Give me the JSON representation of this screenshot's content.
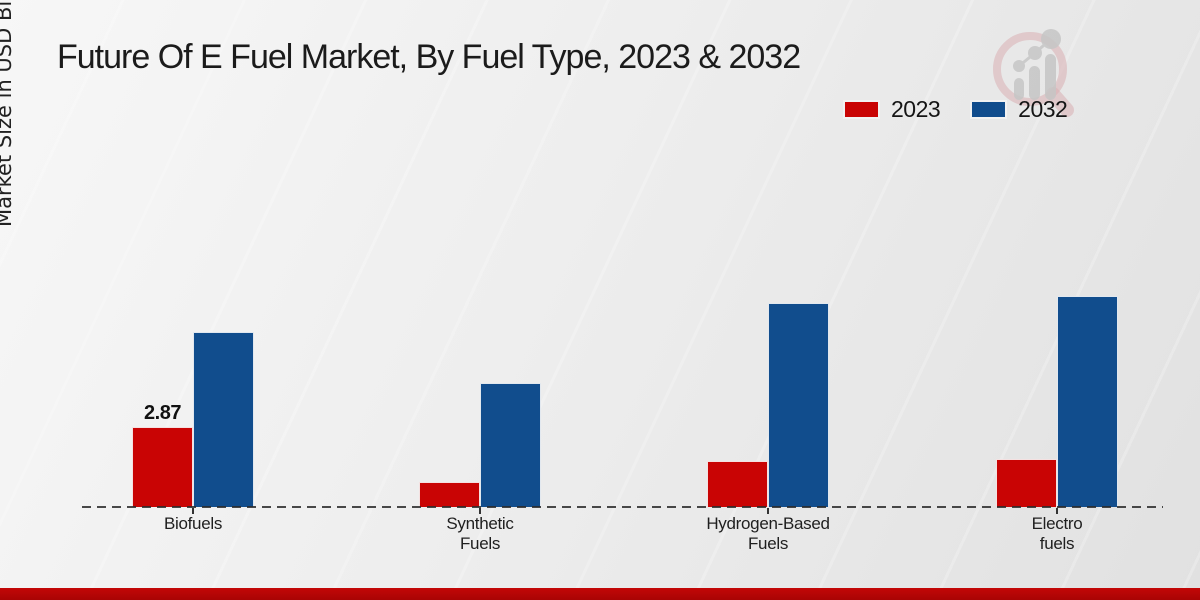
{
  "title": "Future Of E Fuel Market, By Fuel Type, 2023 & 2032",
  "ylabel": "Market Size in USD Billion",
  "legend": [
    {
      "label": "2023",
      "color": "#c90404"
    },
    {
      "label": "2032",
      "color": "#114d8d"
    }
  ],
  "colors": {
    "bar_2023": "#c90404",
    "bar_2032": "#114d8d",
    "axis_dash": "#2a2a2a",
    "bottom_band": "#b90606",
    "background": "#ececec"
  },
  "chart_data": {
    "type": "bar",
    "title": "Future Of E Fuel Market, By Fuel Type, 2023 & 2032",
    "ylabel": "Market Size in USD Billion",
    "xlabel": "",
    "categories": [
      "Biofuels",
      "Synthetic Fuels",
      "Hydrogen-Based Fuels",
      "Electro fuels"
    ],
    "category_lines": [
      [
        "Biofuels"
      ],
      [
        "Synthetic",
        "Fuels"
      ],
      [
        "Hydrogen-Based",
        "Fuels"
      ],
      [
        "Electro",
        "fuels"
      ]
    ],
    "series": [
      {
        "name": "2023",
        "color": "#c90404",
        "values": [
          2.87,
          0.9,
          1.65,
          1.72
        ],
        "point_labels": [
          "2.87",
          "",
          "",
          ""
        ]
      },
      {
        "name": "2032",
        "color": "#114d8d",
        "values": [
          6.28,
          4.45,
          7.32,
          7.57
        ],
        "point_labels": [
          "",
          "",
          "",
          ""
        ]
      }
    ],
    "ylim": [
      0,
      8
    ],
    "grid": false,
    "y_axis_ticks_visible": false,
    "baseline_style": "dashed",
    "legend_position": "top-right"
  }
}
